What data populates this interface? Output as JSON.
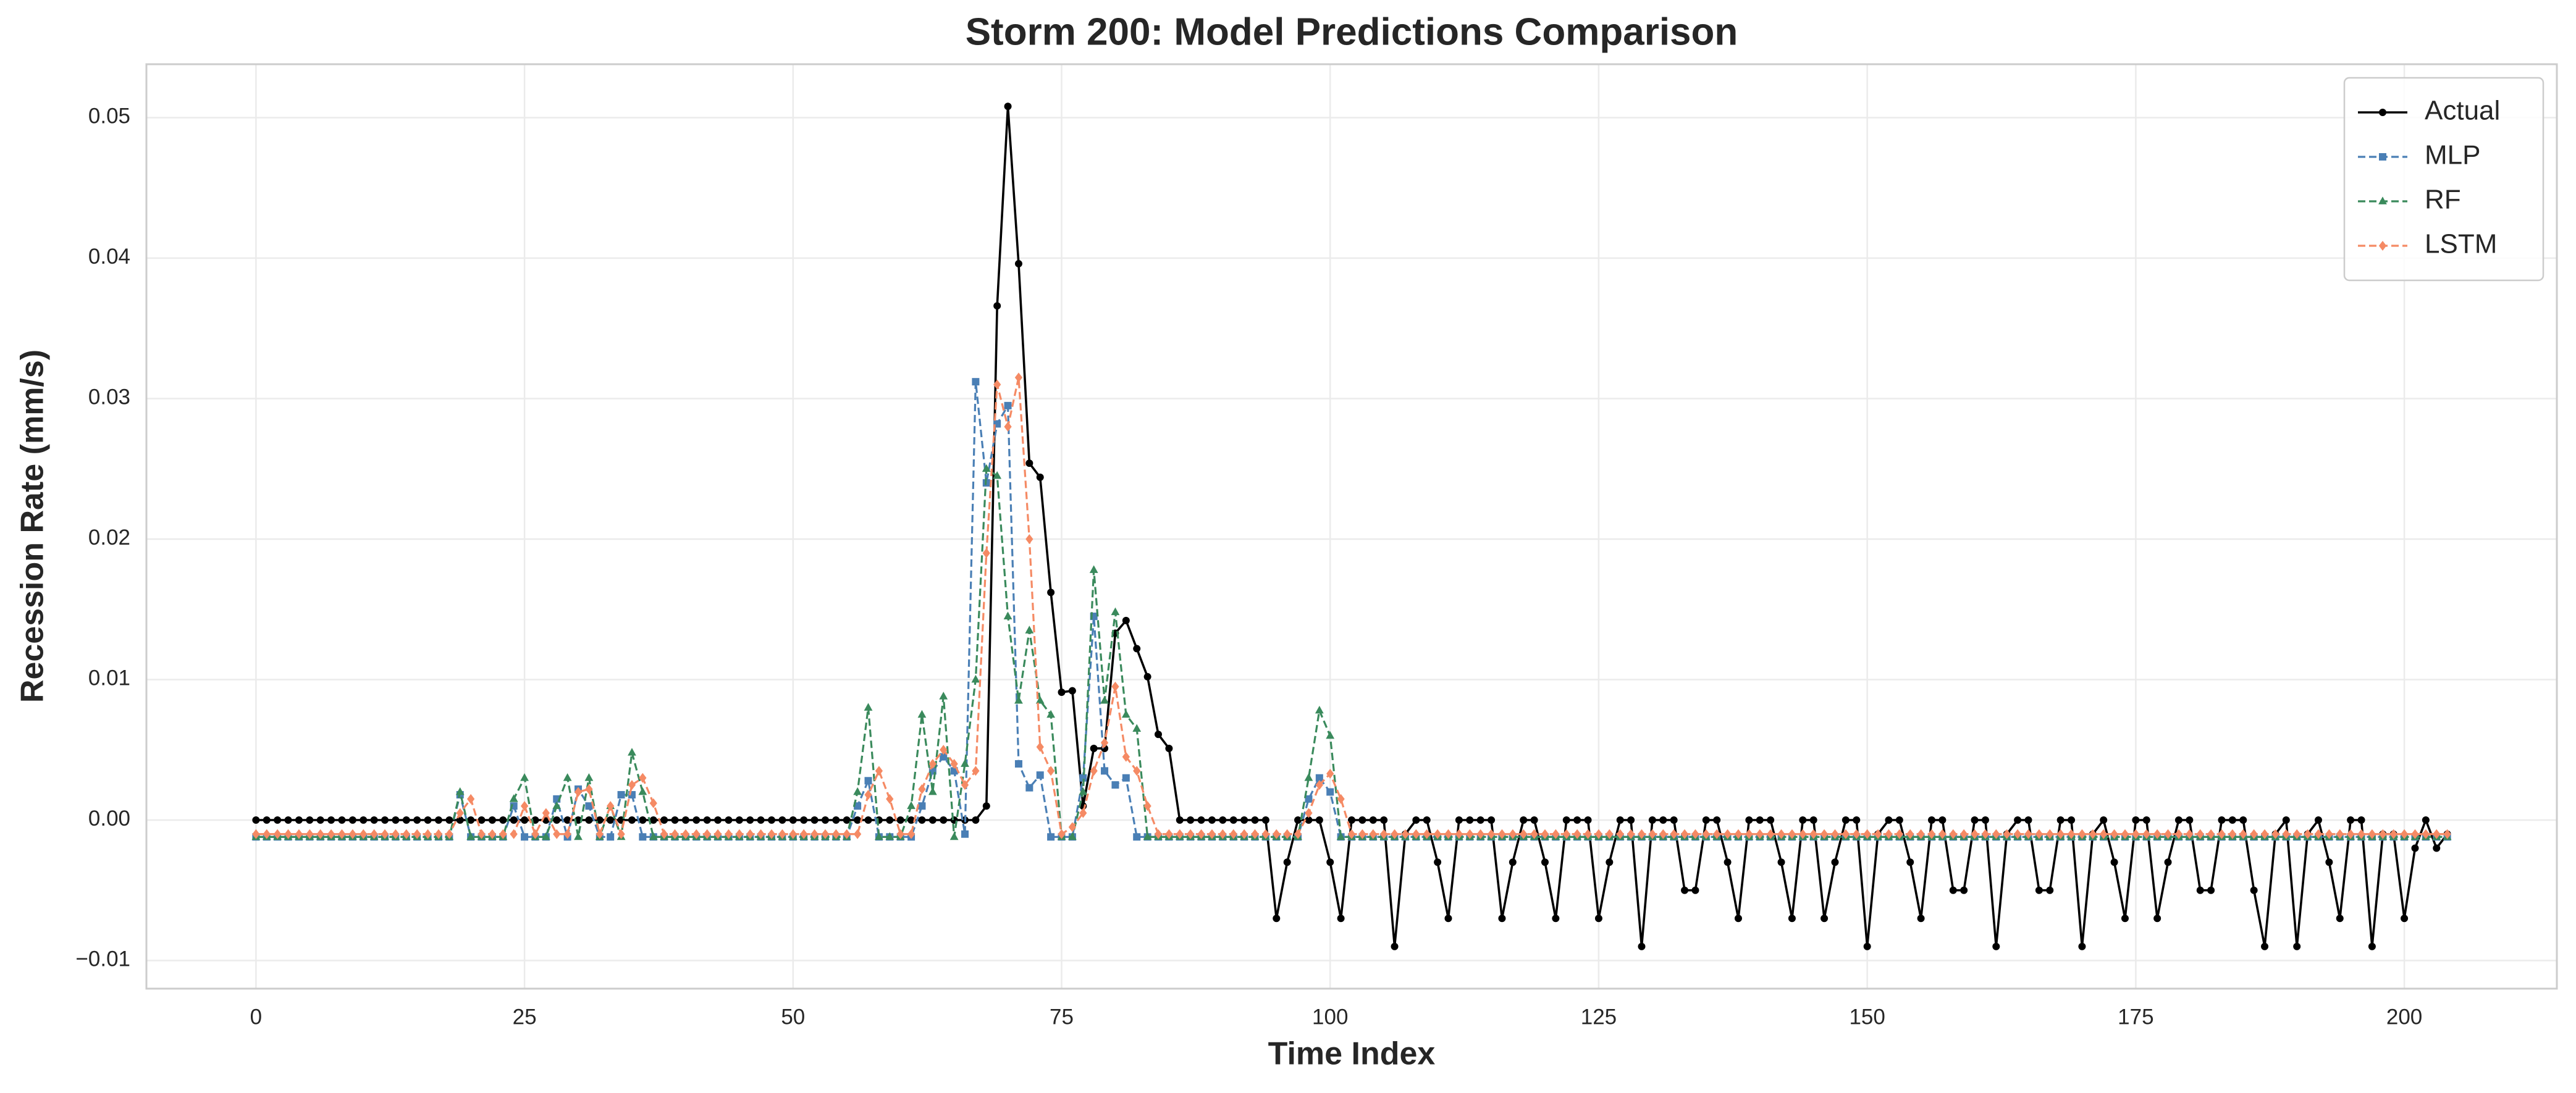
{
  "chart_data": {
    "type": "line",
    "title": "Storm 200: Model Predictions Comparison",
    "x_label": "Time Index",
    "y_label": "Recession Rate (mm/s)",
    "grid": true,
    "legend": "upper right",
    "xlim": [
      -10.2,
      214.2
    ],
    "ylim": [
      -0.012,
      0.0538
    ],
    "xticks": [
      0,
      25,
      50,
      75,
      100,
      125,
      150,
      175,
      200
    ],
    "yticks": [
      {
        "value": -0.01,
        "label": "−0.01"
      },
      {
        "value": 0,
        "label": "0.00"
      },
      0.01,
      0.02,
      0.03,
      0.04,
      0.05
    ],
    "x": [
      0,
      1,
      2,
      3,
      4,
      5,
      6,
      7,
      8,
      9,
      10,
      11,
      12,
      13,
      14,
      15,
      16,
      17,
      18,
      19,
      20,
      21,
      22,
      23,
      24,
      25,
      26,
      27,
      28,
      29,
      30,
      31,
      32,
      33,
      34,
      35,
      36,
      37,
      38,
      39,
      40,
      41,
      42,
      43,
      44,
      45,
      46,
      47,
      48,
      49,
      50,
      51,
      52,
      53,
      54,
      55,
      56,
      57,
      58,
      59,
      60,
      61,
      62,
      63,
      64,
      65,
      66,
      67,
      68,
      69,
      70,
      71,
      72,
      73,
      74,
      75,
      76,
      77,
      78,
      79,
      80,
      81,
      82,
      83,
      84,
      85,
      86,
      87,
      88,
      89,
      90,
      91,
      92,
      93,
      94,
      95,
      96,
      97,
      98,
      99,
      100,
      101,
      102,
      103,
      104,
      105,
      106,
      107,
      108,
      109,
      110,
      111,
      112,
      113,
      114,
      115,
      116,
      117,
      118,
      119,
      120,
      121,
      122,
      123,
      124,
      125,
      126,
      127,
      128,
      129,
      130,
      131,
      132,
      133,
      134,
      135,
      136,
      137,
      138,
      139,
      140,
      141,
      142,
      143,
      144,
      145,
      146,
      147,
      148,
      149,
      150,
      151,
      152,
      153,
      154,
      155,
      156,
      157,
      158,
      159,
      160,
      161,
      162,
      163,
      164,
      165,
      166,
      167,
      168,
      169,
      170,
      171,
      172,
      173,
      174,
      175,
      176,
      177,
      178,
      179,
      180,
      181,
      182,
      183,
      184,
      185,
      186,
      187,
      188,
      189,
      190,
      191,
      192,
      193,
      194,
      195,
      196,
      197,
      198,
      199,
      200,
      201,
      202,
      203,
      204
    ],
    "series": [
      {
        "name": "Actual",
        "color": "#000000",
        "linestyle": "solid",
        "marker": "circle",
        "values": [
          0,
          0,
          0,
          0,
          0,
          0,
          0,
          0,
          0,
          0,
          0,
          0,
          0,
          0,
          0,
          0,
          0,
          0,
          0,
          0,
          0,
          0,
          0,
          0,
          0,
          0,
          0,
          0,
          0,
          0,
          0,
          0,
          0,
          0,
          0,
          0,
          0,
          0,
          0,
          0,
          0,
          0,
          0,
          0,
          0,
          0,
          0,
          0,
          0,
          0,
          0,
          0,
          0,
          0,
          0,
          0,
          0,
          0,
          0,
          0,
          0,
          0,
          0,
          0,
          0,
          0,
          0,
          0,
          0.001,
          0.0366,
          0.0508,
          0.0396,
          0.0254,
          0.0244,
          0.0162,
          0.0091,
          0.0092,
          0.001,
          0.0051,
          0.0051,
          0.0133,
          0.0142,
          0.0122,
          0.0102,
          0.0061,
          0.0051,
          0,
          0,
          0,
          0,
          0,
          0,
          0,
          0,
          0,
          -0.007,
          -0.003,
          0,
          0,
          0,
          -0.003,
          -0.007,
          0,
          0,
          0,
          0,
          -0.009,
          -0.001,
          0,
          0,
          -0.003,
          -0.007,
          0,
          0,
          0,
          0,
          -0.007,
          -0.003,
          0,
          0,
          -0.003,
          -0.007,
          0,
          0,
          0,
          -0.007,
          -0.003,
          0,
          0,
          -0.009,
          0,
          0,
          0,
          -0.005,
          -0.005,
          0,
          0,
          -0.003,
          -0.007,
          0,
          0,
          0,
          -0.003,
          -0.007,
          0,
          0,
          -0.007,
          -0.003,
          0,
          0,
          -0.009,
          -0.001,
          0,
          0,
          -0.003,
          -0.007,
          0,
          0,
          -0.005,
          -0.005,
          0,
          0,
          -0.009,
          -0.001,
          0,
          0,
          -0.005,
          -0.005,
          0,
          0,
          -0.009,
          -0.001,
          0,
          -0.003,
          -0.007,
          0,
          0,
          -0.007,
          -0.003,
          0,
          0,
          -0.005,
          -0.005,
          0,
          0,
          0,
          -0.005,
          -0.009,
          -0.001,
          0,
          -0.009,
          -0.001,
          0,
          -0.003,
          -0.007,
          0,
          0,
          -0.009,
          -0.001,
          -0.001,
          -0.007,
          -0.002,
          0,
          -0.002,
          -0.001
        ]
      },
      {
        "name": "MLP",
        "color": "#4a7fb5",
        "linestyle": "dashed",
        "marker": "square",
        "values": [
          -0.0012,
          -0.0012,
          -0.0012,
          -0.0012,
          -0.0012,
          -0.0012,
          -0.0012,
          -0.0012,
          -0.0012,
          -0.0012,
          -0.0012,
          -0.0012,
          -0.0012,
          -0.0012,
          -0.0012,
          -0.0012,
          -0.0012,
          -0.0012,
          -0.0012,
          0.0018,
          -0.0012,
          -0.0012,
          -0.0012,
          -0.0012,
          0.001,
          -0.0012,
          -0.0012,
          -0.0012,
          0.0015,
          -0.0012,
          0.0022,
          0.001,
          -0.0012,
          -0.0012,
          0.0018,
          0.0018,
          -0.0012,
          -0.0012,
          -0.0012,
          -0.0012,
          -0.0012,
          -0.0012,
          -0.0012,
          -0.0012,
          -0.0012,
          -0.0012,
          -0.0012,
          -0.0012,
          -0.0012,
          -0.0012,
          -0.0012,
          -0.0012,
          -0.0012,
          -0.0012,
          -0.0012,
          -0.0012,
          0.001,
          0.0028,
          -0.0012,
          -0.0012,
          -0.0012,
          -0.0012,
          0.001,
          0.0035,
          0.0045,
          0.0035,
          -0.001,
          0.0312,
          0.024,
          0.0282,
          0.0295,
          0.004,
          0.0023,
          0.0032,
          -0.0012,
          -0.0012,
          -0.0012,
          0.003,
          0.0145,
          0.0035,
          0.0025,
          0.003,
          -0.0012,
          -0.0012,
          -0.0012,
          -0.0012,
          -0.0012,
          -0.0012,
          -0.0012,
          -0.0012,
          -0.0012,
          -0.0012,
          -0.0012,
          -0.0012,
          -0.0012,
          -0.0012,
          -0.0012,
          -0.0012,
          0.0015,
          0.003,
          0.002,
          -0.0012,
          -0.0012,
          -0.0012,
          -0.0012,
          -0.0012,
          -0.0012,
          -0.0012,
          -0.0012,
          -0.0012,
          -0.0012,
          -0.0012,
          -0.0012,
          -0.0012,
          -0.0012,
          -0.0012,
          -0.0012,
          -0.0012,
          -0.0012,
          -0.0012,
          -0.0012,
          -0.0012,
          -0.0012,
          -0.0012,
          -0.0012,
          -0.0012,
          -0.0012,
          -0.0012,
          -0.0012,
          -0.0012,
          -0.0012,
          -0.0012,
          -0.0012,
          -0.0012,
          -0.0012,
          -0.0012,
          -0.0012,
          -0.0012,
          -0.0012,
          -0.0012,
          -0.0012,
          -0.0012,
          -0.0012,
          -0.0012,
          -0.0012,
          -0.0012,
          -0.0012,
          -0.0012,
          -0.0012,
          -0.0012,
          -0.0012,
          -0.0012,
          -0.0012,
          -0.0012,
          -0.0012,
          -0.0012,
          -0.0012,
          -0.0012,
          -0.0012,
          -0.0012,
          -0.0012,
          -0.0012,
          -0.0012,
          -0.0012,
          -0.0012,
          -0.0012,
          -0.0012,
          -0.0012,
          -0.0012,
          -0.0012,
          -0.0012,
          -0.0012,
          -0.0012,
          -0.0012,
          -0.0012,
          -0.0012,
          -0.0012,
          -0.0012,
          -0.0012,
          -0.0012,
          -0.0012,
          -0.0012,
          -0.0012,
          -0.0012,
          -0.0012,
          -0.0012,
          -0.0012,
          -0.0012,
          -0.0012,
          -0.0012,
          -0.0012,
          -0.0012,
          -0.0012,
          -0.0012,
          -0.0012,
          -0.0012,
          -0.0012,
          -0.0012,
          -0.0012,
          -0.0012,
          -0.0012,
          -0.0012,
          -0.0012,
          -0.0012,
          -0.0012
        ]
      },
      {
        "name": "RF",
        "color": "#3a8a5c",
        "linestyle": "dashed",
        "marker": "triangle",
        "values": [
          -0.0012,
          -0.0012,
          -0.0012,
          -0.0012,
          -0.0012,
          -0.0012,
          -0.0012,
          -0.0012,
          -0.0012,
          -0.0012,
          -0.0012,
          -0.0012,
          -0.0012,
          -0.0012,
          -0.0012,
          -0.0012,
          -0.0012,
          -0.0012,
          -0.0012,
          0.002,
          -0.0012,
          -0.0012,
          -0.0012,
          -0.0012,
          0.0015,
          0.003,
          -0.0012,
          -0.0012,
          0.001,
          0.003,
          -0.0012,
          0.003,
          -0.0012,
          0.001,
          -0.0012,
          0.0048,
          0.002,
          -0.0012,
          -0.0012,
          -0.0012,
          -0.0012,
          -0.0012,
          -0.0012,
          -0.0012,
          -0.0012,
          -0.0012,
          -0.0012,
          -0.0012,
          -0.0012,
          -0.0012,
          -0.0012,
          -0.0012,
          -0.0012,
          -0.0012,
          -0.0012,
          -0.0012,
          0.002,
          0.008,
          -0.0012,
          -0.0012,
          -0.0012,
          0.001,
          0.0075,
          0.002,
          0.0088,
          -0.0012,
          0.004,
          0.01,
          0.025,
          0.0245,
          0.0145,
          0.0085,
          0.0135,
          0.0085,
          0.0075,
          -0.0012,
          -0.0012,
          0.002,
          0.0178,
          0.0085,
          0.0148,
          0.0075,
          0.0065,
          -0.0012,
          -0.0012,
          -0.0012,
          -0.0012,
          -0.0012,
          -0.0012,
          -0.0012,
          -0.0012,
          -0.0012,
          -0.0012,
          -0.0012,
          -0.0012,
          -0.0012,
          -0.0012,
          -0.0012,
          0.003,
          0.0078,
          0.006,
          -0.0012,
          -0.0012,
          -0.0012,
          -0.0012,
          -0.0012,
          -0.0012,
          -0.0012,
          -0.0012,
          -0.0012,
          -0.0012,
          -0.0012,
          -0.0012,
          -0.0012,
          -0.0012,
          -0.0012,
          -0.0012,
          -0.0012,
          -0.0012,
          -0.0012,
          -0.0012,
          -0.0012,
          -0.0012,
          -0.0012,
          -0.0012,
          -0.0012,
          -0.0012,
          -0.0012,
          -0.0012,
          -0.0012,
          -0.0012,
          -0.0012,
          -0.0012,
          -0.0012,
          -0.0012,
          -0.0012,
          -0.0012,
          -0.0012,
          -0.0012,
          -0.0012,
          -0.0012,
          -0.0012,
          -0.0012,
          -0.0012,
          -0.0012,
          -0.0012,
          -0.0012,
          -0.0012,
          -0.0012,
          -0.0012,
          -0.0012,
          -0.0012,
          -0.0012,
          -0.0012,
          -0.0012,
          -0.0012,
          -0.0012,
          -0.0012,
          -0.0012,
          -0.0012,
          -0.0012,
          -0.0012,
          -0.0012,
          -0.0012,
          -0.0012,
          -0.0012,
          -0.0012,
          -0.0012,
          -0.0012,
          -0.0012,
          -0.0012,
          -0.0012,
          -0.0012,
          -0.0012,
          -0.0012,
          -0.0012,
          -0.0012,
          -0.0012,
          -0.0012,
          -0.0012,
          -0.0012,
          -0.0012,
          -0.0012,
          -0.0012,
          -0.0012,
          -0.0012,
          -0.0012,
          -0.0012,
          -0.0012,
          -0.0012,
          -0.0012,
          -0.0012,
          -0.0012,
          -0.0012,
          -0.0012,
          -0.0012,
          -0.0012,
          -0.0012,
          -0.0012,
          -0.0012,
          -0.0012,
          -0.0012,
          -0.0012,
          -0.0012,
          -0.0012
        ]
      },
      {
        "name": "LSTM",
        "color": "#f58a64",
        "linestyle": "dashed",
        "marker": "diamond",
        "values": [
          -0.001,
          -0.001,
          -0.001,
          -0.001,
          -0.001,
          -0.001,
          -0.001,
          -0.001,
          -0.001,
          -0.001,
          -0.001,
          -0.001,
          -0.001,
          -0.001,
          -0.001,
          -0.001,
          -0.001,
          -0.001,
          -0.001,
          0.0005,
          0.0015,
          -0.001,
          -0.001,
          -0.001,
          -0.001,
          0.001,
          -0.001,
          0.0005,
          -0.001,
          -0.001,
          0.002,
          0.0022,
          -0.001,
          0.001,
          -0.001,
          0.0025,
          0.003,
          0.0012,
          -0.001,
          -0.001,
          -0.001,
          -0.001,
          -0.001,
          -0.001,
          -0.001,
          -0.001,
          -0.001,
          -0.001,
          -0.001,
          -0.001,
          -0.001,
          -0.001,
          -0.001,
          -0.001,
          -0.001,
          -0.001,
          -0.001,
          0.0018,
          0.0035,
          0.0015,
          -0.001,
          -0.001,
          0.0022,
          0.004,
          0.005,
          0.004,
          0.0025,
          0.0035,
          0.019,
          0.031,
          0.028,
          0.0315,
          0.02,
          0.0052,
          0.0035,
          -0.001,
          -0.0005,
          0.0005,
          0.0035,
          0.0055,
          0.0095,
          0.0045,
          0.0035,
          0.001,
          -0.001,
          -0.001,
          -0.001,
          -0.001,
          -0.001,
          -0.001,
          -0.001,
          -0.001,
          -0.001,
          -0.001,
          -0.001,
          -0.001,
          -0.001,
          -0.001,
          0.0005,
          0.0025,
          0.0033,
          0.0015,
          -0.001,
          -0.001,
          -0.001,
          -0.001,
          -0.001,
          -0.001,
          -0.001,
          -0.001,
          -0.001,
          -0.001,
          -0.001,
          -0.001,
          -0.001,
          -0.001,
          -0.001,
          -0.001,
          -0.001,
          -0.001,
          -0.001,
          -0.001,
          -0.001,
          -0.001,
          -0.001,
          -0.001,
          -0.001,
          -0.001,
          -0.001,
          -0.001,
          -0.001,
          -0.001,
          -0.001,
          -0.001,
          -0.001,
          -0.001,
          -0.001,
          -0.001,
          -0.001,
          -0.001,
          -0.001,
          -0.001,
          -0.001,
          -0.001,
          -0.001,
          -0.001,
          -0.001,
          -0.001,
          -0.001,
          -0.001,
          -0.001,
          -0.001,
          -0.001,
          -0.001,
          -0.001,
          -0.001,
          -0.001,
          -0.001,
          -0.001,
          -0.001,
          -0.001,
          -0.001,
          -0.001,
          -0.001,
          -0.001,
          -0.001,
          -0.001,
          -0.001,
          -0.001,
          -0.001,
          -0.001,
          -0.001,
          -0.001,
          -0.001,
          -0.001,
          -0.001,
          -0.001,
          -0.001,
          -0.001,
          -0.001,
          -0.001,
          -0.001,
          -0.001,
          -0.001,
          -0.001,
          -0.001,
          -0.001,
          -0.001,
          -0.001,
          -0.001,
          -0.001,
          -0.001,
          -0.001,
          -0.001,
          -0.001,
          -0.001,
          -0.001,
          -0.001,
          -0.001,
          -0.001,
          -0.001,
          -0.001,
          -0.001,
          -0.001,
          -0.001
        ]
      }
    ]
  }
}
